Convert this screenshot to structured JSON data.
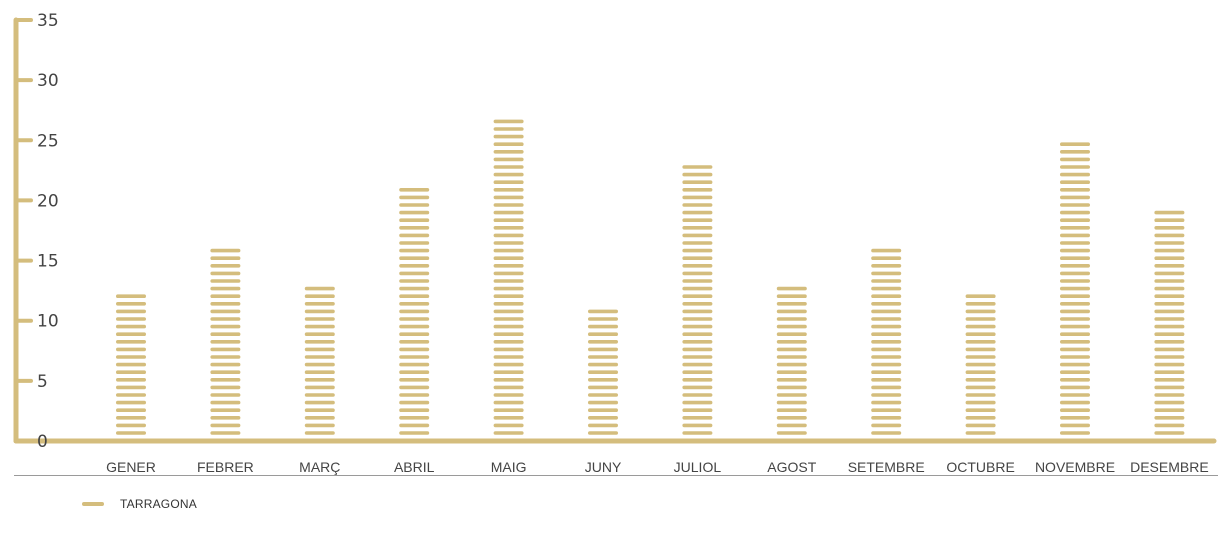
{
  "colors": {
    "accent": "#d4bd7d",
    "divider": "#9a9a9a",
    "text": "#444444"
  },
  "chart_data": {
    "type": "bar",
    "categories": [
      "GENER",
      "FEBRER",
      "MARÇ",
      "ABRIL",
      "MAIG",
      "JUNY",
      "JULIOL",
      "AGOST",
      "SETEMBRE",
      "OCTUBRE",
      "NOVEMBRE",
      "DESEMBRE"
    ],
    "series": [
      {
        "name": "TARRAGONA",
        "values": [
          12.2,
          15.9,
          12.8,
          20.9,
          27.1,
          10.9,
          22.8,
          12.8,
          15.9,
          12.2,
          25.3,
          19.0
        ]
      }
    ],
    "y_ticks": [
      "0",
      "5",
      "10",
      "15",
      "20",
      "25",
      "30",
      "35"
    ],
    "ylim": [
      0,
      35
    ],
    "grid": false,
    "legend_position": "bottom-left",
    "style": "stacked-dash-bars"
  }
}
